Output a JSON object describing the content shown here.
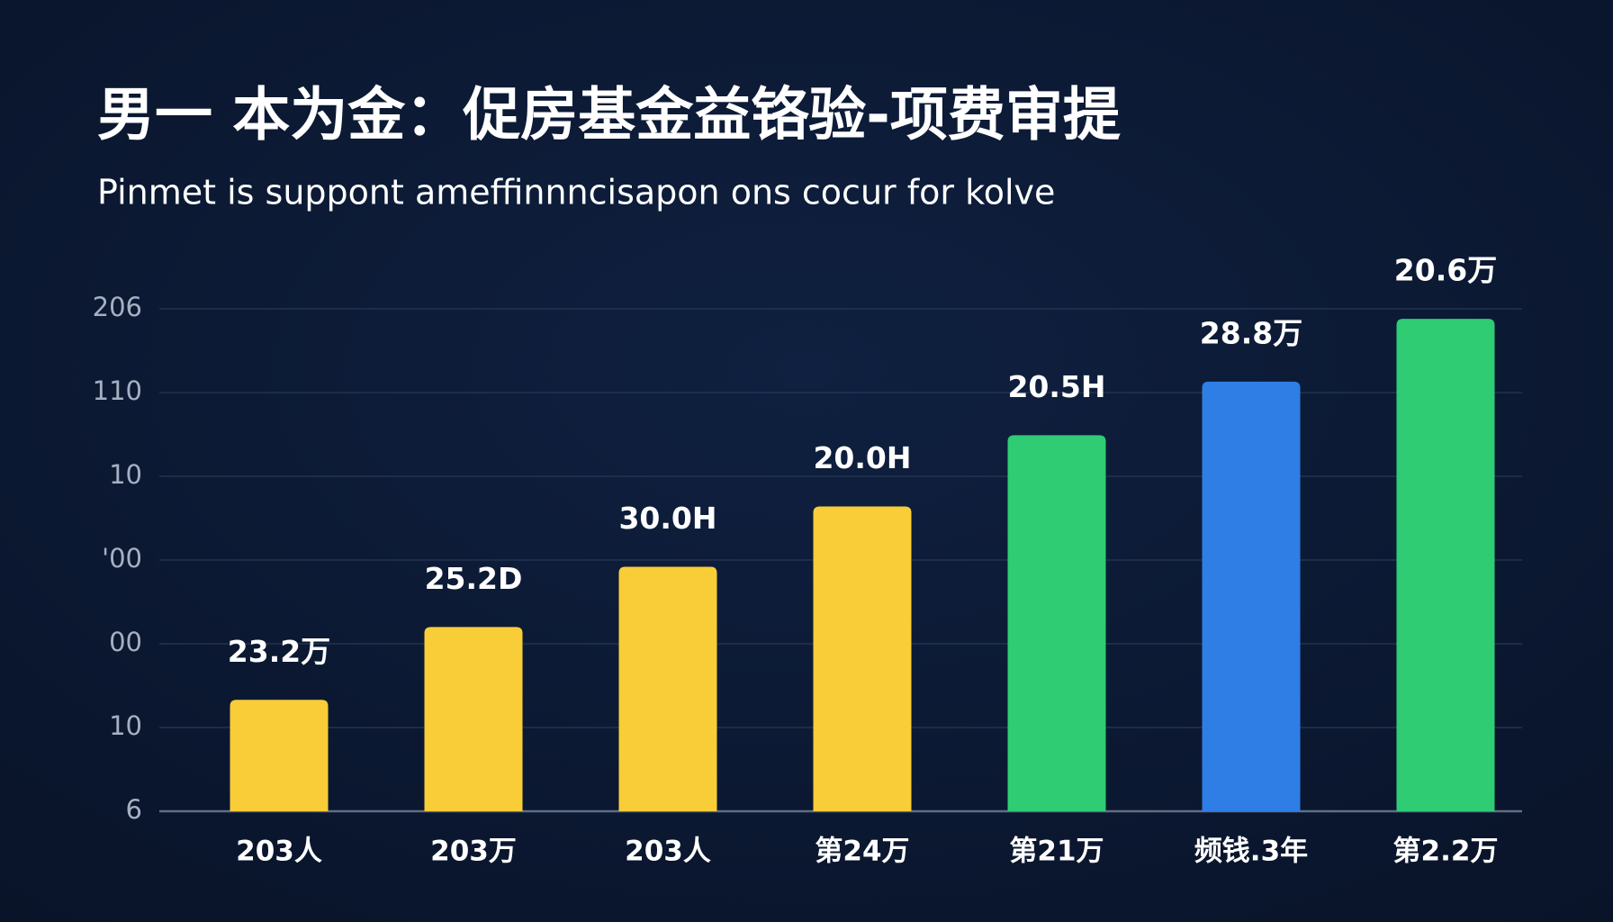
{
  "chart_data": {
    "type": "bar",
    "title": "男一 本为金：促房基金益铬验-项费审提",
    "subtitle": "Pinmet is suppont ameffinnncisapon ons cocur for kolve",
    "categories": [
      "203人",
      "203万",
      "203人",
      "第24万",
      "第21万",
      "频钱.3年",
      "第2.2万"
    ],
    "values": [
      1.33,
      2.2,
      2.92,
      3.64,
      4.49,
      5.13,
      5.88
    ],
    "bar_labels": [
      "23.2万",
      "25.2D",
      "30.0H",
      "20.0H",
      "20.5H",
      "28.8万",
      "20.6万"
    ],
    "colors": [
      "#f8cd37",
      "#f8cd37",
      "#f8cd37",
      "#f8cd37",
      "#2fcc74",
      "#2f7ee6",
      "#2fcc74"
    ],
    "last_label_color": "#86e3df",
    "ylim": [
      0,
      6
    ],
    "yticks": [
      {
        "value": 0,
        "label": "6"
      },
      {
        "value": 1,
        "label": "10"
      },
      {
        "value": 2,
        "label": "00"
      },
      {
        "value": 3,
        "label": "'00"
      },
      {
        "value": 4,
        "label": "10"
      },
      {
        "value": 5,
        "label": "110"
      },
      {
        "value": 6,
        "label": "206"
      }
    ],
    "grid": true
  }
}
